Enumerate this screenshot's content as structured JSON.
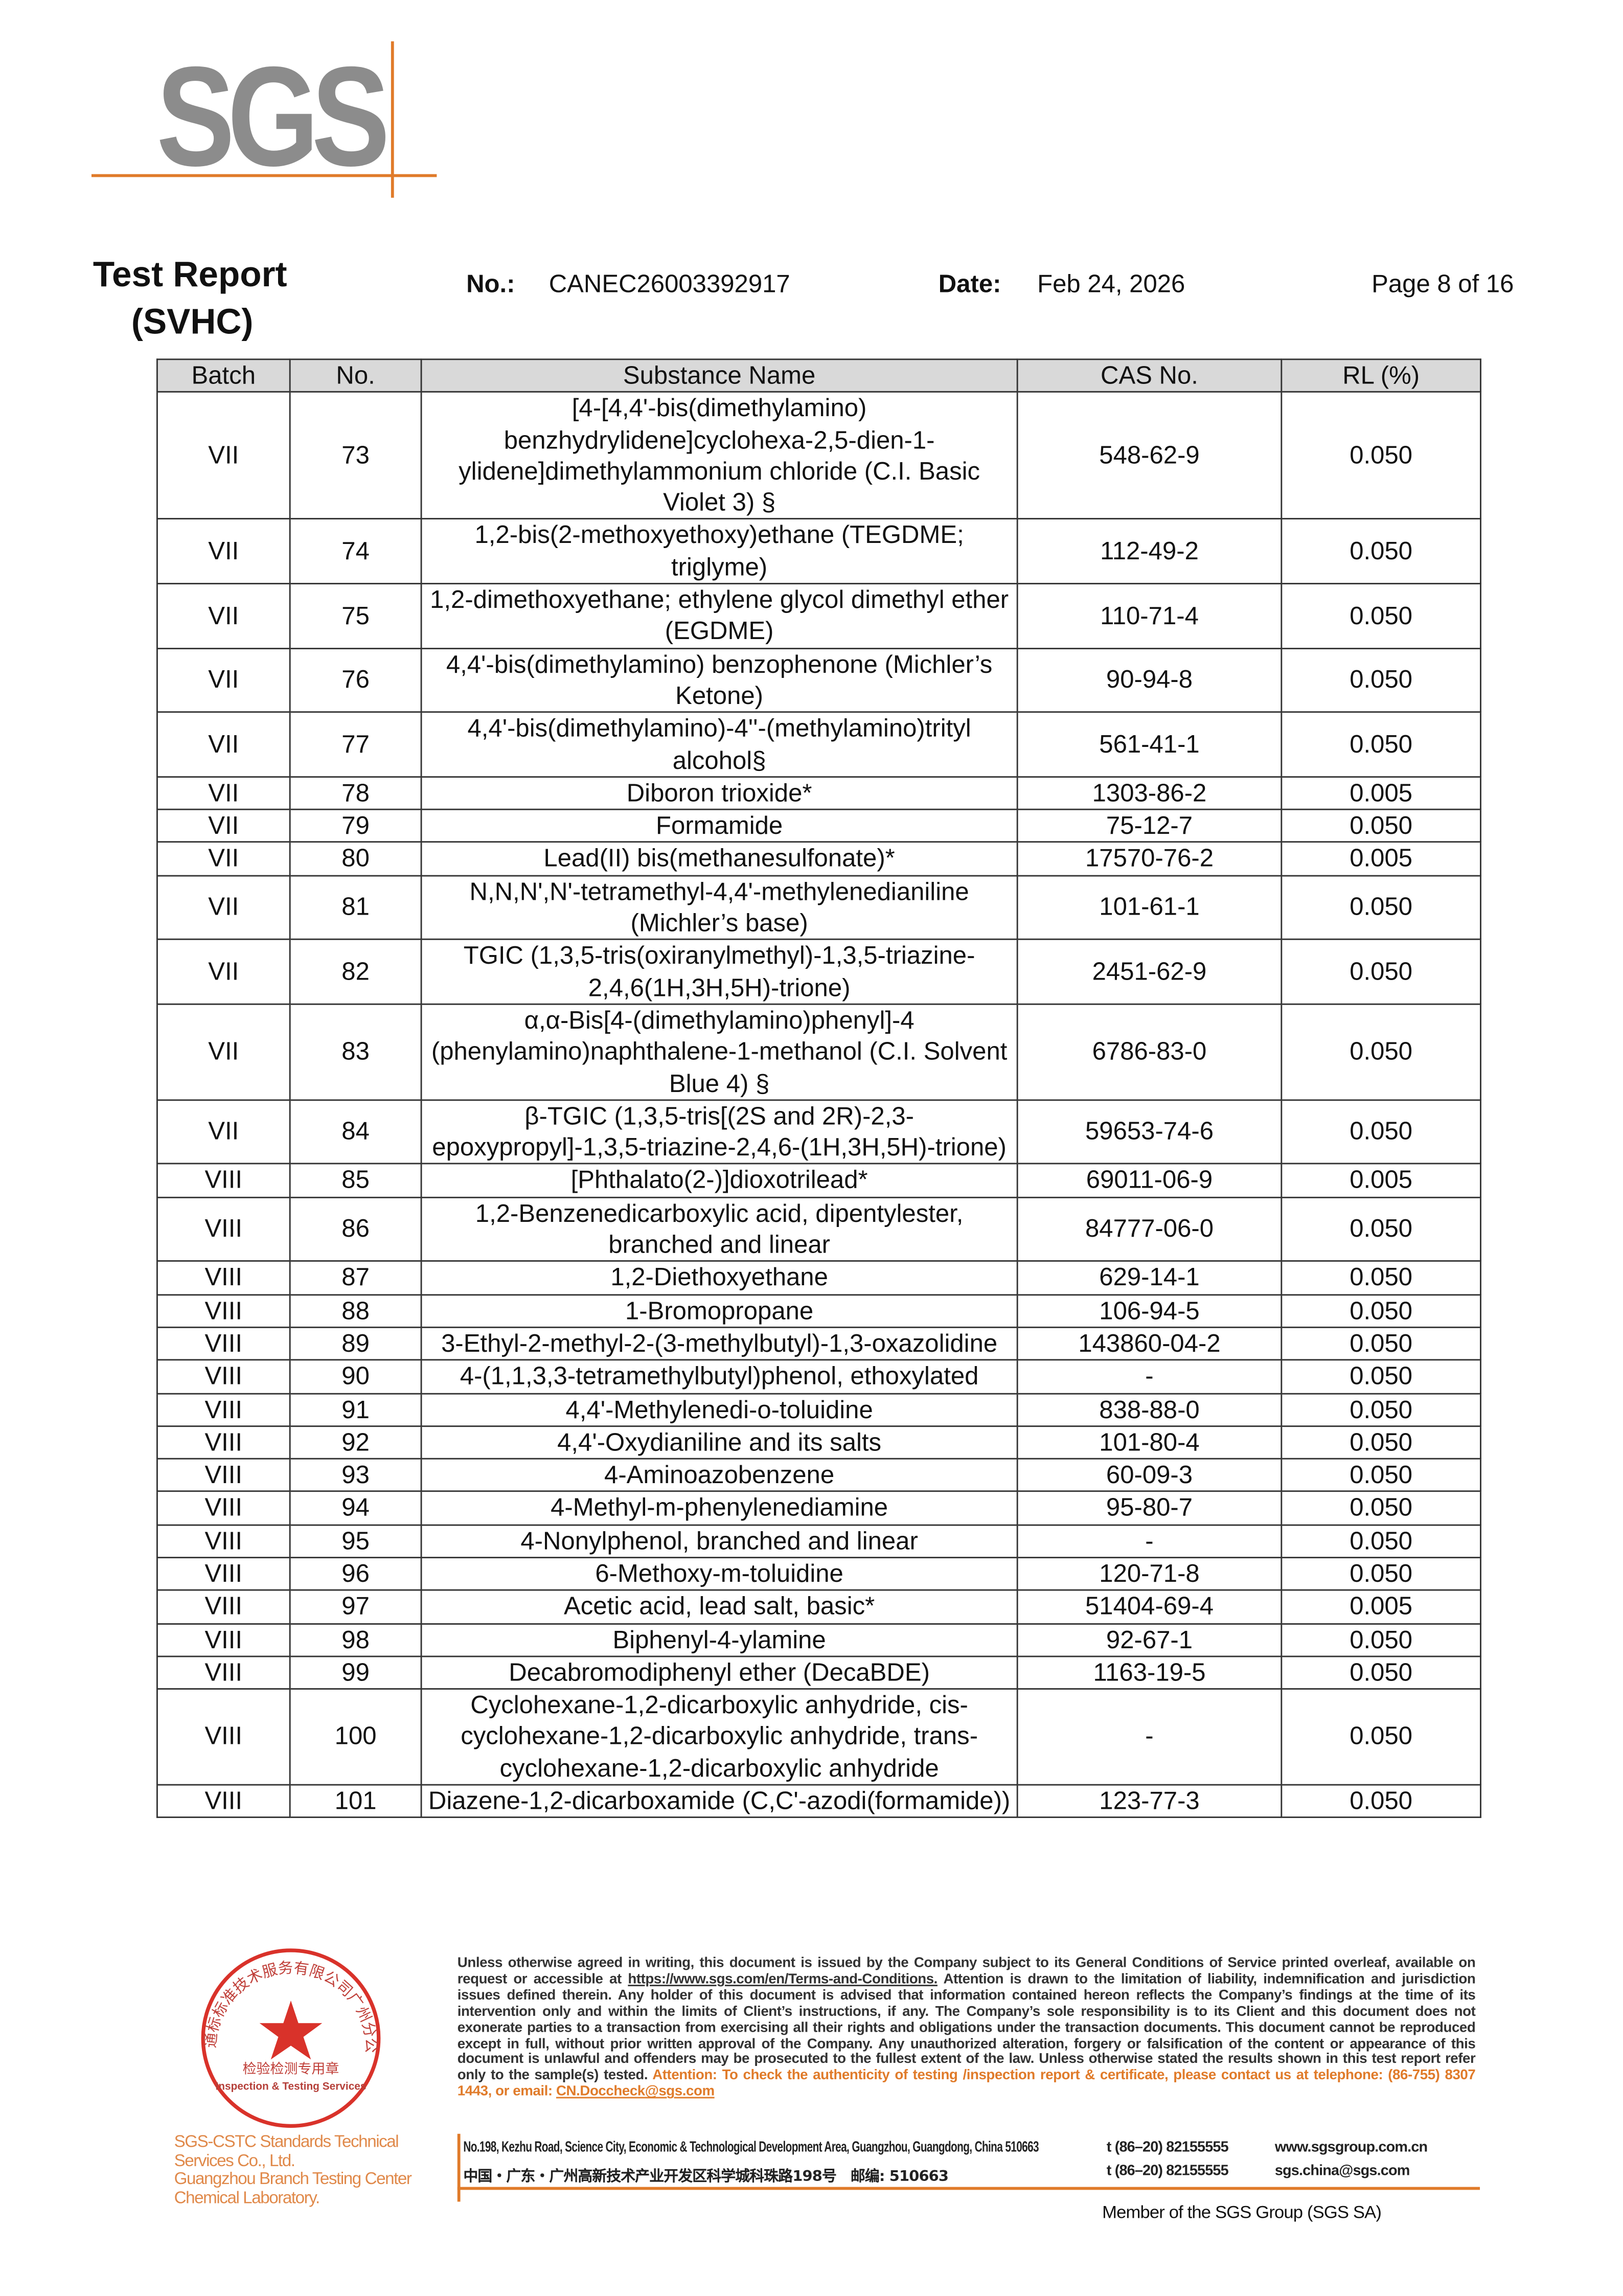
{
  "logo": {
    "text": "SGS",
    "accent_color": "#e07b2a",
    "logo_color": "#8c8c8c"
  },
  "header": {
    "title": "Test Report",
    "subtitle": "(SVHC)",
    "no_label": "No.:",
    "no_value": "CANEC26003392917",
    "date_label": "Date:",
    "date_value": "Feb 24, 2026",
    "page": "Page 8 of 16"
  },
  "table": {
    "columns": [
      "Batch",
      "No.",
      "Substance Name",
      "CAS No.",
      "RL (%)"
    ],
    "rows": [
      [
        "VII",
        "73",
        "[4-[4,4'-bis(dimethylamino) benzhydrylidene]cyclohexa-2,5-dien-1-ylidene]dimethylammonium chloride (C.I. Basic Violet 3) §",
        "548-62-9",
        "0.050"
      ],
      [
        "VII",
        "74",
        "1,2-bis(2-methoxyethoxy)ethane (TEGDME; triglyme)",
        "112-49-2",
        "0.050"
      ],
      [
        "VII",
        "75",
        "1,2-dimethoxyethane; ethylene glycol dimethyl ether (EGDME)",
        "110-71-4",
        "0.050"
      ],
      [
        "VII",
        "76",
        "4,4'-bis(dimethylamino) benzophenone (Michler’s Ketone)",
        "90-94-8",
        "0.050"
      ],
      [
        "VII",
        "77",
        "4,4'-bis(dimethylamino)-4''-(methylamino)trityl alcohol§",
        "561-41-1",
        "0.050"
      ],
      [
        "VII",
        "78",
        "Diboron trioxide*",
        "1303-86-2",
        "0.005"
      ],
      [
        "VII",
        "79",
        "Formamide",
        "75-12-7",
        "0.050"
      ],
      [
        "VII",
        "80",
        "Lead(II) bis(methanesulfonate)*",
        "17570-76-2",
        "0.005"
      ],
      [
        "VII",
        "81",
        "N,N,N',N'-tetramethyl-4,4'-methylenedianiline (Michler’s base)",
        "101-61-1",
        "0.050"
      ],
      [
        "VII",
        "82",
        "TGIC (1,3,5-tris(oxiranylmethyl)-1,3,5-triazine-2,4,6(1H,3H,5H)-trione)",
        "2451-62-9",
        "0.050"
      ],
      [
        "VII",
        "83",
        "α,α-Bis[4-(dimethylamino)phenyl]-4 (phenylamino)naphthalene-1-methanol (C.I. Solvent Blue 4) §",
        "6786-83-0",
        "0.050"
      ],
      [
        "VII",
        "84",
        "β-TGIC (1,3,5-tris[(2S and 2R)-2,3-epoxypropyl]-1,3,5-triazine-2,4,6-(1H,3H,5H)-trione)",
        "59653-74-6",
        "0.050"
      ],
      [
        "VIII",
        "85",
        "[Phthalato(2-)]dioxotrilead*",
        "69011-06-9",
        "0.005"
      ],
      [
        "VIII",
        "86",
        "1,2-Benzenedicarboxylic acid, dipentylester, branched and linear",
        "84777-06-0",
        "0.050"
      ],
      [
        "VIII",
        "87",
        "1,2-Diethoxyethane",
        "629-14-1",
        "0.050"
      ],
      [
        "VIII",
        "88",
        "1-Bromopropane",
        "106-94-5",
        "0.050"
      ],
      [
        "VIII",
        "89",
        "3-Ethyl-2-methyl-2-(3-methylbutyl)-1,3-oxazolidine",
        "143860-04-2",
        "0.050"
      ],
      [
        "VIII",
        "90",
        "4-(1,1,3,3-tetramethylbutyl)phenol, ethoxylated",
        "-",
        "0.050"
      ],
      [
        "VIII",
        "91",
        "4,4'-Methylenedi-o-toluidine",
        "838-88-0",
        "0.050"
      ],
      [
        "VIII",
        "92",
        "4,4'-Oxydianiline and its salts",
        "101-80-4",
        "0.050"
      ],
      [
        "VIII",
        "93",
        "4-Aminoazobenzene",
        "60-09-3",
        "0.050"
      ],
      [
        "VIII",
        "94",
        "4-Methyl-m-phenylenediamine",
        "95-80-7",
        "0.050"
      ],
      [
        "VIII",
        "95",
        "4-Nonylphenol, branched and linear",
        "-",
        "0.050"
      ],
      [
        "VIII",
        "96",
        "6-Methoxy-m-toluidine",
        "120-71-8",
        "0.050"
      ],
      [
        "VIII",
        "97",
        "Acetic acid, lead salt, basic*",
        "51404-69-4",
        "0.005"
      ],
      [
        "VIII",
        "98",
        "Biphenyl-4-ylamine",
        "92-67-1",
        "0.050"
      ],
      [
        "VIII",
        "99",
        "Decabromodiphenyl ether (DecaBDE)",
        "1163-19-5",
        "0.050"
      ],
      [
        "VIII",
        "100",
        "Cyclohexane-1,2-dicarboxylic anhydride, cis-cyclohexane-1,2-dicarboxylic anhydride, trans-cyclohexane-1,2-dicarboxylic anhydride",
        "-",
        "0.050"
      ],
      [
        "VIII",
        "101",
        "Diazene-1,2-dicarboxamide (C,C'-azodi(formamide))",
        "123-77-3",
        "0.050"
      ]
    ]
  },
  "stamp": {
    "ring_text": "通标标准技术服务有限公司广州分公司",
    "center_cn": "检验检测专用章",
    "center_en": "Inspection & Testing Services",
    "ring_en": "SGS-CSTC Standards Technical Services Co., Ltd. Guangzhou Branch",
    "color": "#d9322a"
  },
  "footer": {
    "org_line1": "SGS-CSTC Standards Technical Services Co., Ltd.",
    "org_line2": "Guangzhou Branch Testing Center Chemical Laboratory.",
    "legal_pre": "Unless otherwise agreed in writing, this document is issued by the Company subject to its General Conditions of Service printed overleaf, available on request or accessible at ",
    "legal_link": "https://www.sgs.com/en/Terms-and-Conditions.",
    "legal_post": " Attention is drawn to the limitation of liability, indemnification and jurisdiction issues defined therein. Any holder of this document is advised that information contained hereon reflects the Company’s findings at the time of its intervention only and within the limits of Client’s instructions, if any. The Company’s sole responsibility is to its Client and this document does not exonerate parties to a transaction from exercising all their rights and obligations under the transaction documents. This document cannot be reproduced except in full, without prior written approval of the Company. Any unauthorized alteration, forgery or falsification of the content or appearance of this document is unlawful and offenders may be prosecuted to the fullest extent of the law. Unless otherwise stated the results shown in this test report refer only to the sample(s) tested.",
    "attention": "Attention: To check the authenticity of testing /inspection report & certificate, please contact us at telephone: (86-755) 8307 1443, or email: ",
    "attention_email": "CN.Doccheck@sgs.com",
    "address_en": "No.198, Kezhu Road, Science City, Economic & Technological Development Area, Guangzhou, Guangdong, China 510663",
    "address_cn": "中国・广东・广州高新技术产业开发区科学城科珠路198号　邮编: 510663",
    "tel1": "t (86–20) 82155555",
    "tel2": "t (86–20) 82155555",
    "web": "www.sgsgroup.com.cn",
    "email": "sgs.china@sgs.com",
    "member": "Member of the SGS Group (SGS SA)"
  }
}
